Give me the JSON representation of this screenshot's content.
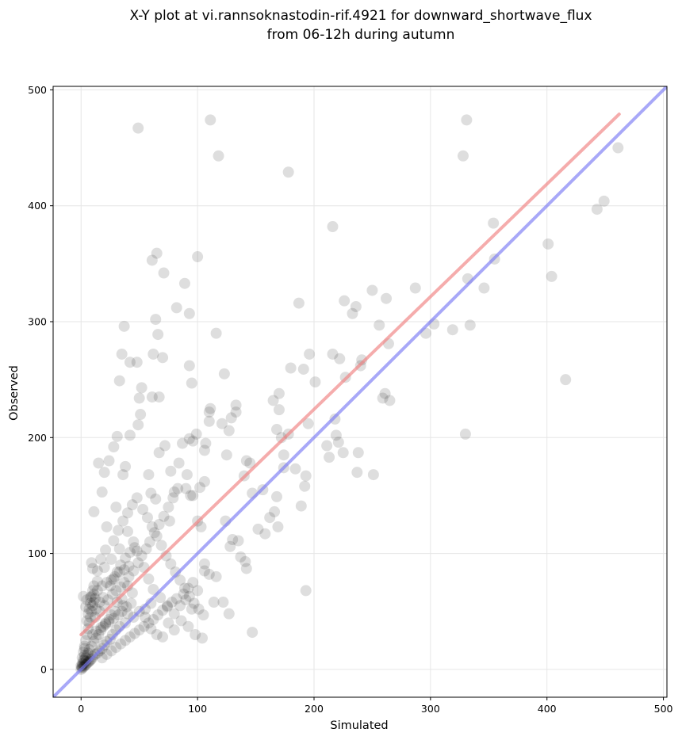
{
  "chart_data": {
    "type": "scatter",
    "title_line1": "X-Y plot at vi.rannsoknastodin-rif.4921 for downward_shortwave_flux",
    "title_line2": "from 06-12h during autumn",
    "xlabel": "Simulated",
    "ylabel": "Observed",
    "xlim": [
      -24,
      503
    ],
    "ylim": [
      -24,
      503
    ],
    "xticks": [
      0,
      100,
      200,
      300,
      400,
      500
    ],
    "yticks": [
      0,
      100,
      200,
      300,
      400,
      500
    ],
    "grid": true,
    "colors": {
      "points": "#000000",
      "fit_line": "#f08080",
      "one_to_one": "#7a7af5"
    },
    "fit_line": {
      "x": [
        0,
        462
      ],
      "y": [
        30,
        479
      ]
    },
    "one_to_one_line": {
      "x": [
        -24,
        503
      ],
      "y": [
        -24,
        503
      ]
    },
    "points": [
      [
        49,
        467
      ],
      [
        111,
        474
      ],
      [
        118,
        443
      ],
      [
        178,
        429
      ],
      [
        331,
        474
      ],
      [
        328,
        443
      ],
      [
        461,
        450
      ],
      [
        449,
        404
      ],
      [
        443,
        397
      ],
      [
        216,
        382
      ],
      [
        354,
        385
      ],
      [
        355,
        354
      ],
      [
        401,
        367
      ],
      [
        404,
        339
      ],
      [
        346,
        329
      ],
      [
        332,
        337
      ],
      [
        416,
        250
      ],
      [
        334,
        297
      ],
      [
        319,
        293
      ],
      [
        303,
        298
      ],
      [
        296,
        290
      ],
      [
        330,
        203
      ],
      [
        287,
        329
      ],
      [
        262,
        320
      ],
      [
        250,
        327
      ],
      [
        256,
        297
      ],
      [
        236,
        313
      ],
      [
        233,
        307
      ],
      [
        226,
        318
      ],
      [
        264,
        281
      ],
      [
        259,
        234
      ],
      [
        261,
        238
      ],
      [
        265,
        232
      ],
      [
        251,
        168
      ],
      [
        240,
        262
      ],
      [
        241,
        267
      ],
      [
        238,
        187
      ],
      [
        237,
        170
      ],
      [
        227,
        252
      ],
      [
        222,
        268
      ],
      [
        216,
        272
      ],
      [
        218,
        216
      ],
      [
        219,
        202
      ],
      [
        221,
        196
      ],
      [
        225,
        187
      ],
      [
        213,
        183
      ],
      [
        211,
        193
      ],
      [
        201,
        248
      ],
      [
        196,
        272
      ],
      [
        191,
        259
      ],
      [
        187,
        316
      ],
      [
        195,
        212
      ],
      [
        193,
        167
      ],
      [
        192,
        158
      ],
      [
        189,
        141
      ],
      [
        193,
        68
      ],
      [
        174,
        174
      ],
      [
        178,
        203
      ],
      [
        180,
        260
      ],
      [
        184,
        173
      ],
      [
        170,
        238
      ],
      [
        165,
        232
      ],
      [
        170,
        224
      ],
      [
        168,
        207
      ],
      [
        172,
        200
      ],
      [
        174,
        185
      ],
      [
        168,
        149
      ],
      [
        166,
        136
      ],
      [
        169,
        123
      ],
      [
        162,
        131
      ],
      [
        158,
        117
      ],
      [
        152,
        121
      ],
      [
        156,
        155
      ],
      [
        147,
        152
      ],
      [
        140,
        167
      ],
      [
        145,
        178
      ],
      [
        142,
        180
      ],
      [
        133,
        222
      ],
      [
        133,
        228
      ],
      [
        129,
        217
      ],
      [
        127,
        206
      ],
      [
        125,
        185
      ],
      [
        123,
        255
      ],
      [
        121,
        212
      ],
      [
        116,
        290
      ],
      [
        111,
        225
      ],
      [
        110,
        222
      ],
      [
        107,
        195
      ],
      [
        106,
        189
      ],
      [
        110,
        214
      ],
      [
        106,
        162
      ],
      [
        102,
        157
      ],
      [
        99,
        203
      ],
      [
        96,
        197
      ],
      [
        93,
        199
      ],
      [
        91,
        168
      ],
      [
        90,
        156
      ],
      [
        94,
        150
      ],
      [
        96,
        150
      ],
      [
        100,
        128
      ],
      [
        103,
        123
      ],
      [
        106,
        91
      ],
      [
        106,
        85
      ],
      [
        110,
        82
      ],
      [
        116,
        80
      ],
      [
        124,
        128
      ],
      [
        128,
        106
      ],
      [
        130,
        112
      ],
      [
        135,
        111
      ],
      [
        137,
        97
      ],
      [
        142,
        87
      ],
      [
        141,
        93
      ],
      [
        147,
        32
      ],
      [
        127,
        48
      ],
      [
        122,
        58
      ],
      [
        114,
        58
      ],
      [
        104,
        27
      ],
      [
        100,
        356
      ],
      [
        89,
        333
      ],
      [
        82,
        312
      ],
      [
        93,
        307
      ],
      [
        95,
        247
      ],
      [
        93,
        262
      ],
      [
        87,
        195
      ],
      [
        84,
        178
      ],
      [
        80,
        153
      ],
      [
        76,
        128
      ],
      [
        71,
        342
      ],
      [
        65,
        359
      ],
      [
        61,
        353
      ],
      [
        66,
        289
      ],
      [
        64,
        302
      ],
      [
        62,
        272
      ],
      [
        61,
        235
      ],
      [
        67,
        235
      ],
      [
        70,
        269
      ],
      [
        67,
        187
      ],
      [
        72,
        193
      ],
      [
        77,
        171
      ],
      [
        64,
        147
      ],
      [
        60,
        152
      ],
      [
        58,
        168
      ],
      [
        51,
        220
      ],
      [
        48,
        265
      ],
      [
        50,
        234
      ],
      [
        49,
        211
      ],
      [
        52,
        243
      ],
      [
        37,
        296
      ],
      [
        35,
        272
      ],
      [
        33,
        249
      ],
      [
        36,
        168
      ],
      [
        38,
        175
      ],
      [
        42,
        265
      ],
      [
        42,
        202
      ],
      [
        31,
        201
      ],
      [
        28,
        192
      ],
      [
        24,
        180
      ],
      [
        20,
        170
      ],
      [
        15,
        178
      ],
      [
        11,
        136
      ],
      [
        18,
        153
      ],
      [
        22,
        123
      ],
      [
        30,
        140
      ],
      [
        33,
        104
      ],
      [
        26,
        95
      ],
      [
        20,
        88
      ],
      [
        14,
        76
      ],
      [
        9,
        92
      ],
      [
        10,
        87
      ],
      [
        5,
        60
      ],
      [
        4,
        54
      ],
      [
        2,
        63
      ],
      [
        40,
        119
      ],
      [
        45,
        110
      ],
      [
        48,
        102
      ],
      [
        54,
        88
      ],
      [
        58,
        78
      ],
      [
        62,
        69
      ],
      [
        68,
        62
      ],
      [
        74,
        55
      ],
      [
        80,
        48
      ],
      [
        86,
        42
      ],
      [
        92,
        37
      ],
      [
        98,
        30
      ],
      [
        60,
        57
      ],
      [
        55,
        52
      ],
      [
        50,
        50
      ],
      [
        45,
        45
      ],
      [
        40,
        48
      ],
      [
        38,
        40
      ],
      [
        33,
        37
      ],
      [
        30,
        34
      ],
      [
        27,
        30
      ],
      [
        25,
        26
      ],
      [
        22,
        24
      ],
      [
        20,
        21
      ],
      [
        18,
        18
      ],
      [
        16,
        16
      ],
      [
        14,
        14
      ],
      [
        12,
        13
      ],
      [
        10,
        11
      ],
      [
        9,
        9
      ],
      [
        8,
        8
      ],
      [
        7,
        7
      ],
      [
        6,
        6
      ],
      [
        5,
        5
      ],
      [
        4,
        4
      ],
      [
        3,
        3
      ],
      [
        2,
        2
      ],
      [
        1,
        1
      ],
      [
        0,
        0
      ],
      [
        0.5,
        2
      ],
      [
        35,
        61
      ],
      [
        40,
        72
      ],
      [
        44,
        66
      ],
      [
        36,
        55
      ],
      [
        31,
        58
      ],
      [
        29,
        50
      ],
      [
        26,
        47
      ],
      [
        24,
        43
      ],
      [
        21,
        40
      ],
      [
        19,
        37
      ],
      [
        17,
        34
      ],
      [
        15,
        30
      ],
      [
        13,
        27
      ],
      [
        11,
        24
      ],
      [
        9,
        20
      ],
      [
        7,
        17
      ],
      [
        6,
        14
      ],
      [
        5,
        12
      ],
      [
        4,
        10
      ],
      [
        3,
        8
      ],
      [
        12,
        45
      ],
      [
        16,
        50
      ],
      [
        20,
        55
      ],
      [
        23,
        60
      ],
      [
        27,
        65
      ],
      [
        30,
        68
      ],
      [
        34,
        71
      ],
      [
        37,
        75
      ],
      [
        41,
        80
      ],
      [
        45,
        85
      ],
      [
        49,
        92
      ],
      [
        52,
        98
      ],
      [
        56,
        104
      ],
      [
        59,
        110
      ],
      [
        63,
        118
      ],
      [
        67,
        125
      ],
      [
        71,
        132
      ],
      [
        75,
        140
      ],
      [
        79,
        148
      ],
      [
        83,
        156
      ],
      [
        10,
        30
      ],
      [
        13,
        33
      ],
      [
        17,
        36
      ],
      [
        21,
        39
      ],
      [
        24,
        41
      ],
      [
        28,
        44
      ],
      [
        32,
        47
      ],
      [
        35,
        50
      ],
      [
        39,
        54
      ],
      [
        43,
        57
      ],
      [
        8,
        62
      ],
      [
        11,
        65
      ],
      [
        14,
        68
      ],
      [
        18,
        72
      ],
      [
        22,
        75
      ],
      [
        26,
        77
      ],
      [
        29,
        80
      ],
      [
        33,
        84
      ],
      [
        37,
        86
      ],
      [
        41,
        89
      ],
      [
        18,
        10
      ],
      [
        22,
        13
      ],
      [
        26,
        16
      ],
      [
        30,
        19
      ],
      [
        34,
        22
      ],
      [
        38,
        25
      ],
      [
        42,
        28
      ],
      [
        46,
        31
      ],
      [
        50,
        34
      ],
      [
        54,
        37
      ],
      [
        58,
        40
      ],
      [
        62,
        43
      ],
      [
        66,
        47
      ],
      [
        70,
        51
      ],
      [
        74,
        54
      ],
      [
        78,
        58
      ],
      [
        82,
        61
      ],
      [
        88,
        65
      ],
      [
        92,
        70
      ],
      [
        96,
        75
      ],
      [
        3,
        20
      ],
      [
        4,
        25
      ],
      [
        5,
        30
      ],
      [
        6,
        35
      ],
      [
        7,
        40
      ],
      [
        8,
        45
      ],
      [
        9,
        50
      ],
      [
        10,
        55
      ],
      [
        11,
        58
      ],
      [
        12,
        61
      ],
      [
        2,
        15
      ],
      [
        3,
        18
      ],
      [
        1,
        10
      ],
      [
        2,
        8
      ],
      [
        3,
        12
      ],
      [
        1,
        5
      ],
      [
        0,
        3
      ],
      [
        1,
        3
      ],
      [
        2,
        5
      ],
      [
        4,
        7
      ],
      [
        28,
        111
      ],
      [
        32,
        120
      ],
      [
        36,
        128
      ],
      [
        40,
        135
      ],
      [
        44,
        142
      ],
      [
        48,
        148
      ],
      [
        53,
        138
      ],
      [
        57,
        131
      ],
      [
        61,
        123
      ],
      [
        65,
        115
      ],
      [
        69,
        107
      ],
      [
        73,
        98
      ],
      [
        77,
        91
      ],
      [
        81,
        84
      ],
      [
        85,
        77
      ],
      [
        89,
        70
      ],
      [
        93,
        63
      ],
      [
        97,
        57
      ],
      [
        101,
        52
      ],
      [
        105,
        47
      ],
      [
        25,
        72
      ],
      [
        28,
        78
      ],
      [
        31,
        84
      ],
      [
        34,
        90
      ],
      [
        38,
        96
      ],
      [
        42,
        101
      ],
      [
        46,
        105
      ],
      [
        19,
        62
      ],
      [
        16,
        58
      ],
      [
        13,
        52
      ],
      [
        55,
        45
      ],
      [
        60,
        35
      ],
      [
        65,
        30
      ],
      [
        70,
        28
      ],
      [
        75,
        40
      ],
      [
        80,
        34
      ],
      [
        85,
        55
      ],
      [
        90,
        60
      ],
      [
        95,
        52
      ],
      [
        100,
        68
      ],
      [
        5,
        42
      ],
      [
        6,
        48
      ],
      [
        7,
        52
      ],
      [
        8,
        57
      ],
      [
        9,
        63
      ],
      [
        10,
        68
      ],
      [
        11,
        72
      ],
      [
        14,
        85
      ],
      [
        17,
        95
      ],
      [
        21,
        103
      ]
    ]
  }
}
